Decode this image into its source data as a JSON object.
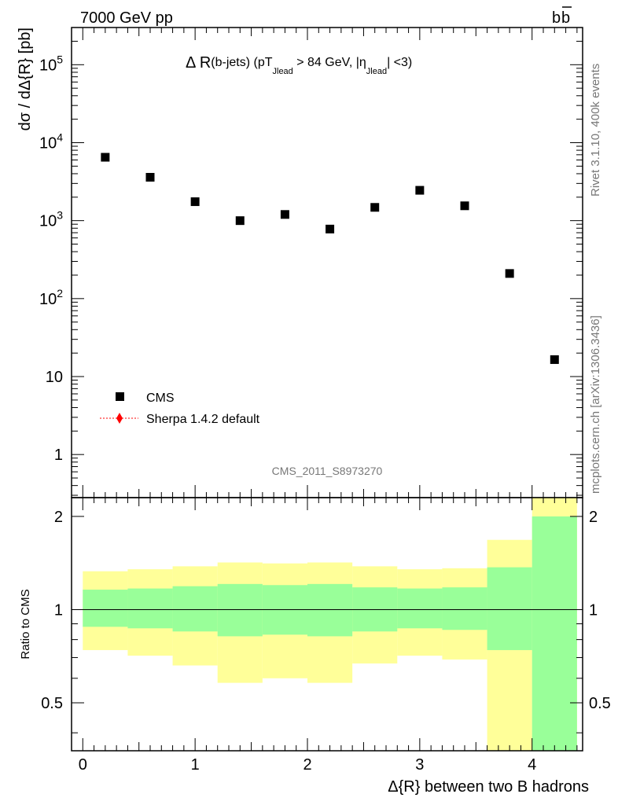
{
  "header": {
    "left": "7000 GeV pp",
    "right": "b",
    "right_bar": "b"
  },
  "side": {
    "rivet": "Rivet 3.1.10,  400k events",
    "site": "mcplots.cern.ch [arXiv:1306.3436]"
  },
  "chart_data": [
    {
      "type": "scatter",
      "title_parts": {
        "a": "Δ R",
        "b": "(b-jets) (pT",
        "b_sub": "Jlead",
        "c": " >  84 GeV, |η",
        "c_sub": "Jlead",
        "d": "| <3)"
      },
      "ylabel": "dσ / dΔ{R} [pb]",
      "yscale": "log",
      "ylim": [
        0.28,
        300000
      ],
      "xlim": [
        -0.1,
        4.45
      ],
      "ytick_labels": [
        "1",
        "10",
        "10^2",
        "10^3",
        "10^4",
        "10^5"
      ],
      "watermark": "CMS_2011_S8973270",
      "legend_position": "lower-left",
      "series": [
        {
          "name": "CMS",
          "marker": "square",
          "color": "#000000",
          "x": [
            0.2,
            0.6,
            1.0,
            1.4,
            1.8,
            2.2,
            2.6,
            3.0,
            3.4,
            3.8,
            4.2
          ],
          "y": [
            6500,
            3600,
            1750,
            1000,
            1200,
            780,
            1480,
            2450,
            1550,
            210,
            16.5
          ]
        },
        {
          "name": "Sherpa 1.4.2 default",
          "marker": "diamond",
          "color": "#ff0000",
          "x": [],
          "y": []
        }
      ]
    },
    {
      "type": "area",
      "ylabel": "Ratio to CMS",
      "xlabel": "Δ{R} between two B hadrons",
      "ylim": [
        0.35,
        2.3
      ],
      "xlim": [
        -0.1,
        4.45
      ],
      "xtick_labels": [
        "0",
        "1",
        "2",
        "3",
        "4"
      ],
      "ytick_labels": [
        "0.5",
        "1",
        "2"
      ],
      "reference_line": 1,
      "bin_edges": [
        0,
        0.4,
        0.8,
        1.2,
        1.6,
        2.0,
        2.4,
        2.8,
        3.2,
        3.6,
        4.0,
        4.4
      ],
      "bands": [
        {
          "name": "stat",
          "color": "#99ff99",
          "lower": [
            0.88,
            0.87,
            0.85,
            0.82,
            0.83,
            0.82,
            0.85,
            0.87,
            0.86,
            0.74,
            0.35
          ],
          "upper": [
            1.16,
            1.17,
            1.19,
            1.21,
            1.2,
            1.21,
            1.18,
            1.17,
            1.18,
            1.37,
            2.0
          ]
        },
        {
          "name": "total",
          "color": "#ffff99",
          "lower": [
            0.74,
            0.71,
            0.66,
            0.58,
            0.6,
            0.58,
            0.67,
            0.71,
            0.69,
            0.35,
            0.35
          ],
          "upper": [
            1.33,
            1.35,
            1.38,
            1.42,
            1.41,
            1.42,
            1.38,
            1.35,
            1.36,
            1.68,
            2.3
          ]
        }
      ]
    }
  ]
}
